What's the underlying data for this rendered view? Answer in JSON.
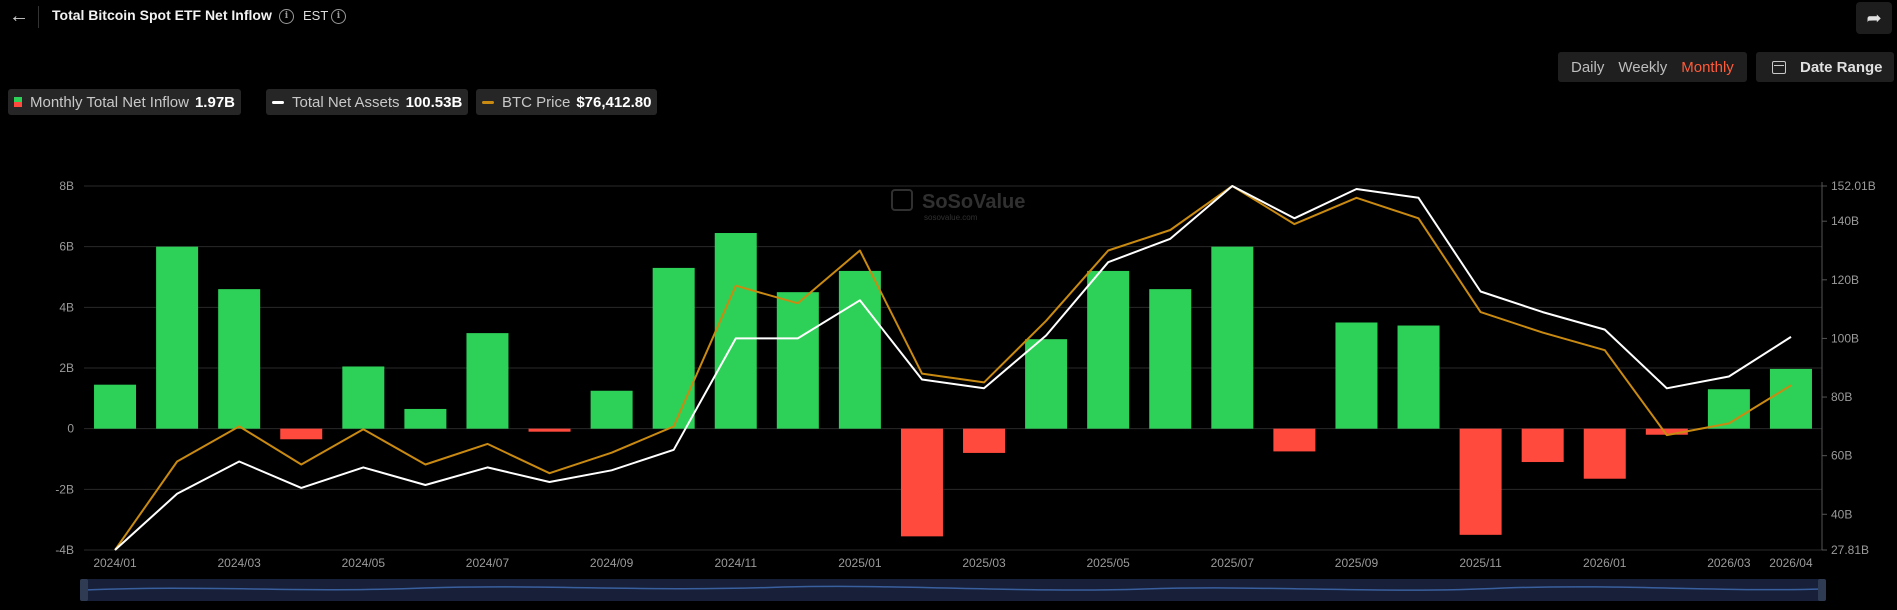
{
  "header": {
    "back_icon": "arrow-left-icon",
    "title": "Total Bitcoin Spot ETF Net Inflow",
    "timezone": "EST",
    "share_icon": "share-arrow-icon"
  },
  "controls": {
    "tabs": [
      "Daily",
      "Weekly",
      "Monthly"
    ],
    "active_tab": "Monthly",
    "date_range_label": "Date Range",
    "date_range_icon": "calendar-icon"
  },
  "legend": {
    "inflow_label": "Monthly Total Net Inflow",
    "inflow_value": "1.97B",
    "assets_label": "Total Net Assets",
    "assets_value": "100.53B",
    "price_label": "BTC Price",
    "price_value": "$76,412.80"
  },
  "watermark": {
    "brand": "SoSoValue",
    "domain": "sosovalue.com"
  },
  "chart_data": {
    "type": "bar",
    "colors": {
      "positive": "#2ed158",
      "negative": "#ff4a3d",
      "assets": "#ffffff",
      "price": "#c98a12",
      "grid": "#2a2a2a",
      "axis_text": "#9a9a9a"
    },
    "categories": [
      "2024/01",
      "2024/02",
      "2024/03",
      "2024/04",
      "2024/05",
      "2024/06",
      "2024/07",
      "2024/08",
      "2024/09",
      "2024/10",
      "2024/11",
      "2024/12",
      "2025/01",
      "2025/02",
      "2025/03",
      "2025/04",
      "2025/05",
      "2025/06",
      "2025/07",
      "2025/08",
      "2025/09",
      "2025/10",
      "2025/11",
      "2025/12",
      "2026/01",
      "2026/02",
      "2026/03",
      "2026/04"
    ],
    "x_tick_labels": [
      "2024/01",
      "2024/03",
      "2024/05",
      "2024/07",
      "2024/09",
      "2024/11",
      "2025/01",
      "2025/03",
      "2025/05",
      "2025/07",
      "2025/09",
      "2025/11",
      "2026/01",
      "2026/03",
      "2026/04"
    ],
    "left_axis": {
      "ylim": [
        -4,
        8
      ],
      "ticks": [
        "-4B",
        "-2B",
        "0",
        "2B",
        "4B",
        "6B",
        "8B"
      ]
    },
    "right_axis": {
      "ylim": [
        27.81,
        152.01
      ],
      "ticks": [
        "27.81B",
        "40B",
        "60B",
        "80B",
        "100B",
        "120B",
        "140B",
        "152.01B"
      ]
    },
    "series": [
      {
        "name": "Monthly Total Net Inflow",
        "axis": "left",
        "values": [
          1.45,
          6.0,
          4.6,
          -0.35,
          2.05,
          0.65,
          3.15,
          -0.1,
          1.25,
          5.3,
          6.45,
          4.5,
          5.2,
          -3.55,
          -0.8,
          2.95,
          5.2,
          4.6,
          6.0,
          -0.75,
          3.5,
          3.4,
          -3.5,
          -1.1,
          -1.65,
          -0.2,
          1.3,
          1.97
        ]
      },
      {
        "name": "Total Net Assets",
        "axis": "right",
        "values": [
          27.81,
          47,
          58,
          49,
          56,
          50,
          56,
          51,
          55,
          62,
          100,
          100,
          113,
          86,
          83,
          101,
          126,
          134,
          152,
          141,
          151,
          148,
          116,
          109,
          103,
          83,
          87,
          100.53
        ]
      },
      {
        "name": "BTC Price",
        "axis": "right",
        "values": [
          27.81,
          58,
          70,
          57,
          69,
          57,
          64,
          54,
          61,
          70,
          118,
          112,
          130,
          88,
          85,
          106,
          130,
          137,
          152,
          139,
          148,
          141,
          109,
          102,
          96,
          67,
          71,
          84
        ]
      }
    ]
  }
}
